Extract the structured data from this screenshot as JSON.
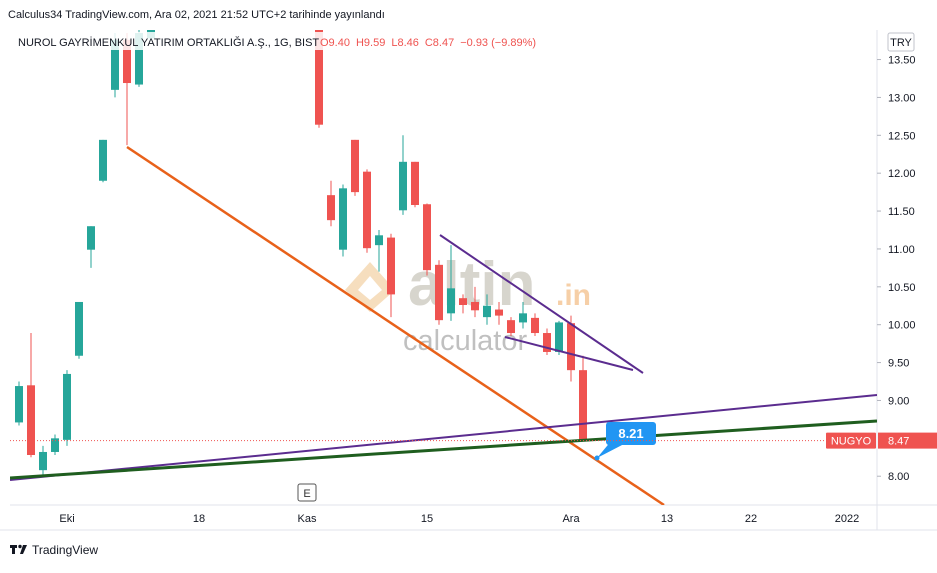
{
  "header": {
    "publisher": "Calculus34 TradingView.com, Ara 02, 2021 21:52 UTC+2 tarihinde yayınlandı",
    "footer": "TradingView"
  },
  "chart_data": {
    "type": "candlestick",
    "title": "NUROL GAYRİMENKUL YATIRIM ORTAKLIĞI A.Ş., 1G, BIST",
    "legend_values": [
      "O9.40",
      "H9.59",
      "L8.46",
      "C8.47",
      "−0.93 (−9.89%)"
    ],
    "currency": "TRY",
    "symbol": "NUGYO",
    "last_price": 8.47,
    "annotations": [
      "8.21",
      "E"
    ],
    "watermark": [
      "altin",
      ".in",
      "calculator"
    ],
    "up_color": "#26a69a",
    "down_color": "#ef5350",
    "ylim": [
      7.62,
      13.89
    ],
    "yticks": [
      {
        "value": 8.0,
        "label": "8.00"
      },
      {
        "value": 9.0,
        "label": "9.00"
      },
      {
        "value": 9.5,
        "label": "9.50"
      },
      {
        "value": 10.0,
        "label": "10.00"
      },
      {
        "value": 10.5,
        "label": "10.50"
      },
      {
        "value": 11.0,
        "label": "11.00"
      },
      {
        "value": 11.5,
        "label": "11.50"
      },
      {
        "value": 12.0,
        "label": "12.00"
      },
      {
        "value": 12.5,
        "label": "12.50"
      },
      {
        "value": 13.0,
        "label": "13.00"
      },
      {
        "value": 13.5,
        "label": "13.50"
      }
    ],
    "categories": [
      null,
      null,
      null,
      null,
      "Eki",
      null,
      null,
      null,
      null,
      null,
      null,
      null,
      null,
      null,
      null,
      "18",
      null,
      null,
      null,
      null,
      null,
      null,
      null,
      null,
      "Kas",
      null,
      null,
      null,
      null,
      null,
      null,
      null,
      null,
      null,
      "15",
      null,
      null,
      null,
      null,
      null,
      null,
      null,
      null,
      null,
      null,
      null,
      "Ara",
      null,
      null,
      null,
      null,
      null,
      null,
      null,
      "13",
      null,
      null,
      null,
      null,
      null,
      null,
      "22",
      null,
      null,
      null,
      null,
      null,
      null,
      null,
      "2022"
    ],
    "open": [
      8.71,
      9.2,
      8.08,
      8.32,
      8.48,
      9.59,
      10.99,
      11.9,
      13.1,
      13.76,
      13.17,
      13.78,
      null,
      null,
      null,
      null,
      null,
      null,
      null,
      null,
      null,
      null,
      null,
      null,
      null,
      13.95,
      11.71,
      10.99,
      12.44,
      12.02,
      11.05,
      11.15,
      11.51,
      12.15,
      11.59,
      10.79,
      10.15,
      10.35,
      10.3,
      10.1,
      10.2,
      10.06,
      10.03,
      10.09,
      9.89,
      9.64,
      10.02,
      9.4,
      null,
      null,
      null,
      null,
      null,
      null,
      null,
      null,
      null,
      null,
      null,
      null,
      null,
      null,
      null,
      null,
      null,
      null,
      null,
      null,
      null,
      null
    ],
    "high": [
      9.25,
      9.89,
      8.4,
      8.55,
      9.4,
      10.3,
      11.3,
      12.44,
      13.85,
      13.85,
      13.95,
      14.0,
      null,
      null,
      null,
      null,
      null,
      null,
      null,
      null,
      null,
      null,
      null,
      null,
      null,
      14.0,
      11.9,
      11.85,
      12.44,
      12.05,
      11.25,
      11.2,
      12.5,
      12.15,
      11.6,
      10.85,
      11.05,
      10.4,
      10.5,
      10.4,
      10.3,
      10.1,
      10.3,
      10.15,
      9.95,
      10.05,
      10.12,
      9.59,
      null,
      null,
      null,
      null,
      null,
      null,
      null,
      null,
      null,
      null,
      null,
      null,
      null,
      null,
      null,
      null,
      null,
      null,
      null,
      null,
      null,
      null
    ],
    "low": [
      8.67,
      8.25,
      8.02,
      8.28,
      8.4,
      9.55,
      10.75,
      11.88,
      13.0,
      12.37,
      13.14,
      13.75,
      null,
      null,
      null,
      null,
      null,
      null,
      null,
      null,
      null,
      null,
      null,
      null,
      null,
      12.6,
      11.3,
      10.9,
      11.7,
      10.95,
      10.7,
      10.1,
      11.45,
      11.55,
      10.65,
      10.0,
      10.05,
      10.15,
      10.1,
      10.0,
      10.0,
      9.85,
      9.95,
      9.85,
      9.6,
      9.6,
      9.25,
      8.46,
      null,
      null,
      null,
      null,
      null,
      null,
      null,
      null,
      null,
      null,
      null,
      null,
      null,
      null,
      null,
      null,
      null,
      null,
      null,
      null,
      null,
      null
    ],
    "close": [
      9.19,
      8.28,
      8.32,
      8.5,
      9.35,
      10.3,
      11.3,
      12.44,
      13.76,
      13.19,
      13.85,
      13.95,
      null,
      null,
      null,
      null,
      null,
      null,
      null,
      null,
      null,
      null,
      null,
      null,
      null,
      12.64,
      11.38,
      11.8,
      11.75,
      11.01,
      11.18,
      10.4,
      12.15,
      11.58,
      10.72,
      10.06,
      10.48,
      10.26,
      10.19,
      10.25,
      10.12,
      9.89,
      10.15,
      9.89,
      9.64,
      10.03,
      9.4,
      8.47,
      null,
      null,
      null,
      null,
      null,
      null,
      null,
      null,
      null,
      null,
      null,
      null,
      null,
      null,
      null,
      null,
      null,
      null,
      null,
      null,
      null,
      null
    ]
  }
}
